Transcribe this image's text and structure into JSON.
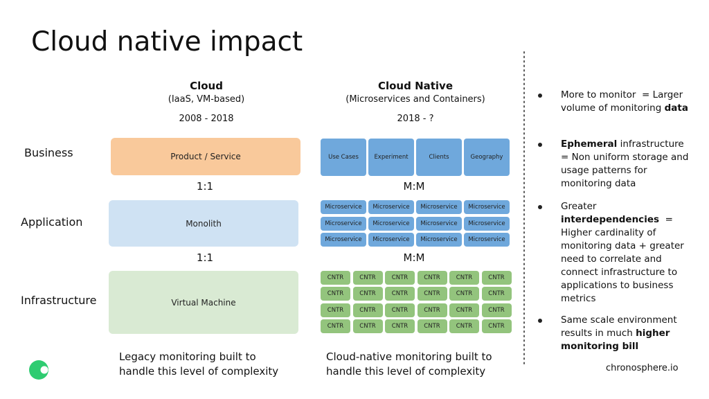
{
  "title": "Cloud native impact",
  "row_labels": [
    "Business",
    "Application",
    "Infrastructure"
  ],
  "cloud": {
    "heading": "Cloud",
    "subheading": "(IaaS, VM-based)",
    "years": "2008 - 2018",
    "business": "Product / Service",
    "application": "Monolith",
    "infrastructure": "Virtual Machine",
    "ratios": [
      "1:1",
      "1:1"
    ],
    "caption": "Legacy monitoring built to handle this level of complexity"
  },
  "cloud_native": {
    "heading": "Cloud Native",
    "subheading": "(Microservices and Containers)",
    "years": "2018 - ?",
    "business": [
      "Use Cases",
      "Experiment",
      "Clients",
      "Geography"
    ],
    "application": [
      [
        "Microservice",
        "Microservice",
        "Microservice",
        "Microservice"
      ],
      [
        "Microservice",
        "Microservice",
        "Microservice",
        "Microservice"
      ],
      [
        "Microservice",
        "Microservice",
        "Microservice",
        "Microservice"
      ]
    ],
    "infrastructure": [
      [
        "CNTR",
        "CNTR",
        "CNTR",
        "CNTR",
        "CNTR",
        "CNTR"
      ],
      [
        "CNTR",
        "CNTR",
        "CNTR",
        "CNTR",
        "CNTR",
        "CNTR"
      ],
      [
        "CNTR",
        "CNTR",
        "CNTR",
        "CNTR",
        "CNTR",
        "CNTR"
      ],
      [
        "CNTR",
        "CNTR",
        "CNTR",
        "CNTR",
        "CNTR",
        "CNTR"
      ]
    ],
    "ratios": [
      "M:M",
      "M:M"
    ],
    "caption": "Cloud-native monitoring built to handle this level of complexity"
  },
  "bullets": [
    [
      {
        "text": "More to monitor  = Larger volume of monitoring "
      },
      {
        "text": "data",
        "bold": true
      }
    ],
    [
      {
        "text": "Ephemeral",
        "bold": true
      },
      {
        "text": " infrastructure = Non uniform storage and usage patterns for monitoring data"
      }
    ],
    [
      {
        "text": "Greater "
      },
      {
        "text": "interdependencies",
        "bold": true
      },
      {
        "text": "  = Higher cardinality of monitoring data + greater need to correlate and connect infrastructure to applications to business metrics"
      }
    ],
    [
      {
        "text": "Same scale environment results in much "
      },
      {
        "text": "higher monitoring bill",
        "bold": true
      }
    ]
  ],
  "footer": "chronosphere.io"
}
